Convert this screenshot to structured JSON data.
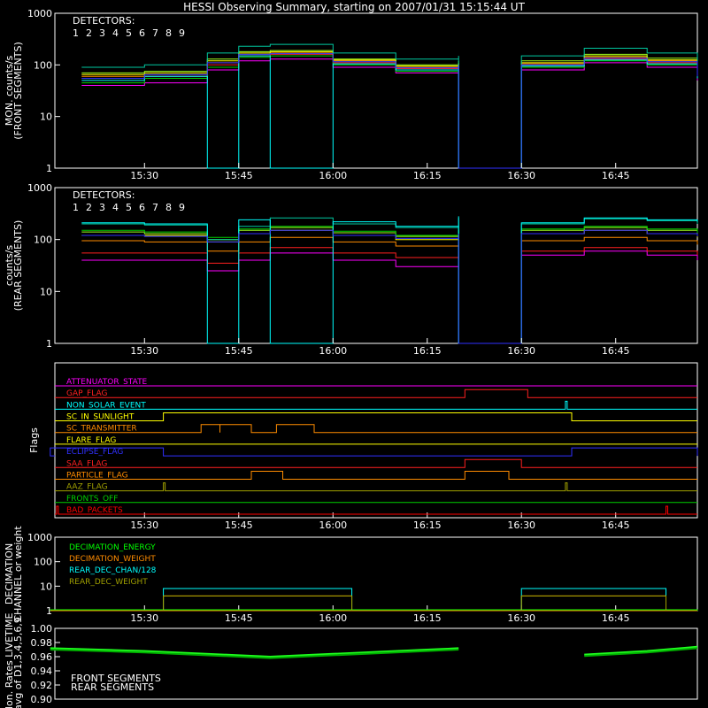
{
  "title": "HESSI Observing Summary, starting on 2007/01/31 15:15:44 UT",
  "x_ticks": [
    "15:30",
    "15:45",
    "16:00",
    "16:15",
    "16:30",
    "16:45"
  ],
  "colors": {
    "background": "#000000",
    "axes": "#ffffff",
    "det1": "#ff00ff",
    "det2": "#ff2020",
    "det3": "#ff8c00",
    "det4": "#ffff00",
    "det5": "#a0ff20",
    "det6": "#00d000",
    "det7": "#00c8a0",
    "det8": "#00ffff",
    "det9": "#3030ff",
    "front_segments": "#20ff20",
    "rear_segments": "#00b000"
  },
  "chart_data": [
    {
      "type": "line",
      "panel": "front",
      "ylabel": [
        "MON. counts/s",
        "(FRONT SEGMENTS)"
      ],
      "yscale": "log",
      "ylim": [
        1,
        1000
      ],
      "y_ticks": [
        "1",
        "10",
        "100",
        "1000"
      ],
      "legend_title": "DETECTORS:",
      "legend": [
        "1",
        "2",
        "3",
        "4",
        "5",
        "6",
        "7",
        "8",
        "9"
      ],
      "x": [
        "15:20",
        "15:30",
        "15:40",
        "15:45",
        "15:50",
        "16:00",
        "16:10",
        "16:20",
        "16:20",
        "16:30",
        "16:30",
        "16:40",
        "16:50",
        "16:58"
      ],
      "series": [
        {
          "name": "1",
          "values": [
            40,
            45,
            80,
            120,
            130,
            90,
            70,
            80,
            1,
            1,
            80,
            110,
            90,
            50
          ]
        },
        {
          "name": "2",
          "values": [
            55,
            60,
            100,
            150,
            160,
            110,
            85,
            95,
            1,
            1,
            95,
            130,
            110,
            60
          ]
        },
        {
          "name": "3",
          "values": [
            60,
            65,
            110,
            160,
            170,
            120,
            90,
            105,
            1,
            1,
            105,
            140,
            120,
            65
          ]
        },
        {
          "name": "4",
          "values": [
            65,
            70,
            120,
            170,
            180,
            125,
            95,
            110,
            1,
            1,
            110,
            150,
            125,
            70
          ]
        },
        {
          "name": "5",
          "values": [
            70,
            75,
            130,
            180,
            190,
            130,
            100,
            120,
            1,
            1,
            120,
            160,
            135,
            75
          ]
        },
        {
          "name": "6",
          "values": [
            45,
            55,
            90,
            140,
            150,
            100,
            75,
            90,
            1,
            1,
            90,
            120,
            100,
            55
          ]
        },
        {
          "name": "7",
          "values": [
            90,
            100,
            170,
            230,
            250,
            170,
            130,
            150,
            1,
            1,
            150,
            210,
            170,
            95
          ]
        },
        {
          "name": "8",
          "values": [
            50,
            60,
            1,
            150,
            1,
            105,
            80,
            95,
            1,
            1,
            95,
            125,
            105,
            55
          ]
        },
        {
          "name": "9",
          "values": [
            55,
            65,
            110,
            160,
            165,
            115,
            88,
            100,
            1,
            1,
            100,
            135,
            115,
            60
          ]
        }
      ]
    },
    {
      "type": "line",
      "panel": "rear",
      "ylabel": [
        "counts/s",
        "(REAR SEGMENTS)"
      ],
      "yscale": "log",
      "ylim": [
        1,
        1000
      ],
      "y_ticks": [
        "1",
        "10",
        "100",
        "1000"
      ],
      "legend_title": "DETECTORS:",
      "legend": [
        "1",
        "2",
        "3",
        "4",
        "5",
        "6",
        "7",
        "8",
        "9"
      ],
      "x": [
        "15:20",
        "15:30",
        "15:40",
        "15:45",
        "15:50",
        "16:00",
        "16:10",
        "16:20",
        "16:20",
        "16:30",
        "16:30",
        "16:40",
        "16:50",
        "16:58"
      ],
      "series": [
        {
          "name": "1",
          "values": [
            40,
            40,
            25,
            40,
            55,
            40,
            30,
            50,
            1,
            1,
            50,
            60,
            50,
            40
          ]
        },
        {
          "name": "2",
          "values": [
            55,
            55,
            35,
            55,
            70,
            55,
            45,
            60,
            1,
            1,
            60,
            70,
            60,
            50
          ]
        },
        {
          "name": "3",
          "values": [
            95,
            90,
            60,
            90,
            110,
            90,
            75,
            95,
            1,
            1,
            95,
            110,
            95,
            80
          ]
        },
        {
          "name": "4",
          "values": [
            120,
            120,
            90,
            130,
            150,
            120,
            100,
            130,
            1,
            1,
            130,
            150,
            130,
            110
          ]
        },
        {
          "name": "5",
          "values": [
            140,
            130,
            100,
            150,
            170,
            135,
            115,
            150,
            1,
            1,
            150,
            170,
            150,
            125
          ]
        },
        {
          "name": "6",
          "values": [
            150,
            140,
            110,
            160,
            180,
            145,
            120,
            160,
            1,
            1,
            160,
            180,
            160,
            135
          ]
        },
        {
          "name": "7",
          "values": [
            200,
            190,
            100,
            180,
            260,
            200,
            170,
            260,
            1,
            1,
            200,
            250,
            230,
            200
          ]
        },
        {
          "name": "8",
          "values": [
            210,
            200,
            1,
            240,
            1,
            220,
            180,
            280,
            1,
            1,
            210,
            260,
            240,
            220
          ]
        },
        {
          "name": "9",
          "values": [
            120,
            115,
            90,
            130,
            150,
            120,
            105,
            130,
            1,
            1,
            130,
            150,
            130,
            115
          ]
        }
      ]
    },
    {
      "type": "line",
      "panel": "flags",
      "ylabel": "Flags",
      "flags": [
        {
          "name": "ATTENUATOR_STATE",
          "color": "#ff00ff",
          "on_intervals": []
        },
        {
          "name": "GAP_FLAG",
          "color": "#ff2020",
          "on_intervals": [
            [
              "16:21",
              "16:31"
            ]
          ]
        },
        {
          "name": "NON_SOLAR_EVENT",
          "color": "#00ffff",
          "on_intervals": [
            [
              "16:37",
              "16:37"
            ]
          ]
        },
        {
          "name": "SC_IN_SUNLIGHT",
          "color": "#ffff00",
          "on_intervals": [
            [
              "15:33",
              "16:38"
            ]
          ]
        },
        {
          "name": "SC_TRANSMITTER",
          "color": "#ff8c00",
          "on_intervals": [
            [
              "15:39",
              "15:42"
            ],
            [
              "15:42",
              "15:47"
            ],
            [
              "15:51",
              "15:57"
            ]
          ]
        },
        {
          "name": "FLARE_FLAG",
          "color": "#ffff00",
          "on_intervals": []
        },
        {
          "name": "ECLIPSE_FLAG",
          "color": "#3030ff",
          "on_intervals": [
            [
              "15:15",
              "15:33"
            ],
            [
              "16:38",
              "16:58"
            ]
          ]
        },
        {
          "name": "SAA_FLAG",
          "color": "#ff2020",
          "on_intervals": [
            [
              "16:21",
              "16:30"
            ]
          ]
        },
        {
          "name": "PARTICLE_FLAG",
          "color": "#ff8c00",
          "on_intervals": [
            [
              "15:47",
              "15:52"
            ],
            [
              "16:21",
              "16:28"
            ]
          ]
        },
        {
          "name": "AAZ_FLAG",
          "color": "#a0a000",
          "on_intervals": [
            [
              "15:33",
              "15:33"
            ],
            [
              "16:37",
              "16:37"
            ]
          ]
        },
        {
          "name": "FRONTS_OFF",
          "color": "#00d000",
          "on_intervals": []
        },
        {
          "name": "BAD_PACKETS",
          "color": "#ff0000",
          "on_intervals": [
            [
              "15:16",
              "15:16"
            ],
            [
              "16:53",
              "16:53"
            ]
          ]
        }
      ]
    },
    {
      "type": "line",
      "panel": "decimation",
      "ylabel": [
        "DECIMATION",
        "CHANNEL or weight"
      ],
      "yscale": "log",
      "ylim": [
        1,
        1000
      ],
      "y_ticks": [
        "1",
        "10",
        "100",
        "1000"
      ],
      "legend": [
        "DECIMATION_ENERGY",
        "DECIMATION_WEIGHT",
        "REAR_DEC_CHAN/128",
        "REAR_DEC_WEIGHT"
      ],
      "series": [
        {
          "name": "DECIMATION_ENERGY",
          "color": "#00ff00",
          "steps": [
            [
              "15:15",
              "16:58",
              0
            ]
          ]
        },
        {
          "name": "DECIMATION_WEIGHT",
          "color": "#ff8c00",
          "steps": [
            [
              "15:15",
              "16:58",
              1
            ],
            [
              "15:33",
              "16:03",
              4
            ],
            [
              "16:30",
              "16:53",
              4
            ]
          ]
        },
        {
          "name": "REAR_DEC_CHAN/128",
          "color": "#00ffff",
          "steps": [
            [
              "15:33",
              "16:03",
              8
            ],
            [
              "16:30",
              "16:53",
              8
            ]
          ]
        },
        {
          "name": "REAR_DEC_WEIGHT",
          "color": "#a0a000",
          "steps": [
            [
              "15:33",
              "16:03",
              4
            ],
            [
              "16:30",
              "16:53",
              4
            ]
          ]
        }
      ]
    },
    {
      "type": "line",
      "panel": "livetime",
      "ylabel": [
        "Mon. Rates LIVETIME",
        "avg of D1,3,4,5,6,9"
      ],
      "ylim": [
        0.9,
        1.0
      ],
      "y_ticks": [
        "0.90",
        "0.92",
        "0.94",
        "0.96",
        "0.98",
        "1.00"
      ],
      "legend": [
        "FRONT SEGMENTS",
        "REAR SEGMENTS"
      ],
      "x": [
        "15:15",
        "15:30",
        "15:45",
        "15:50",
        "16:00",
        "16:15",
        "16:20",
        "16:30",
        "16:40",
        "16:50",
        "16:58"
      ],
      "series": [
        {
          "name": "FRONT SEGMENTS",
          "values": [
            0.972,
            0.968,
            0.962,
            0.96,
            0.964,
            0.97,
            0.972,
            null,
            0.963,
            0.968,
            0.974
          ]
        },
        {
          "name": "REAR SEGMENTS",
          "values": [
            0.97,
            0.966,
            0.96,
            0.958,
            0.962,
            0.968,
            0.97,
            null,
            0.961,
            0.966,
            0.972
          ]
        }
      ]
    }
  ]
}
